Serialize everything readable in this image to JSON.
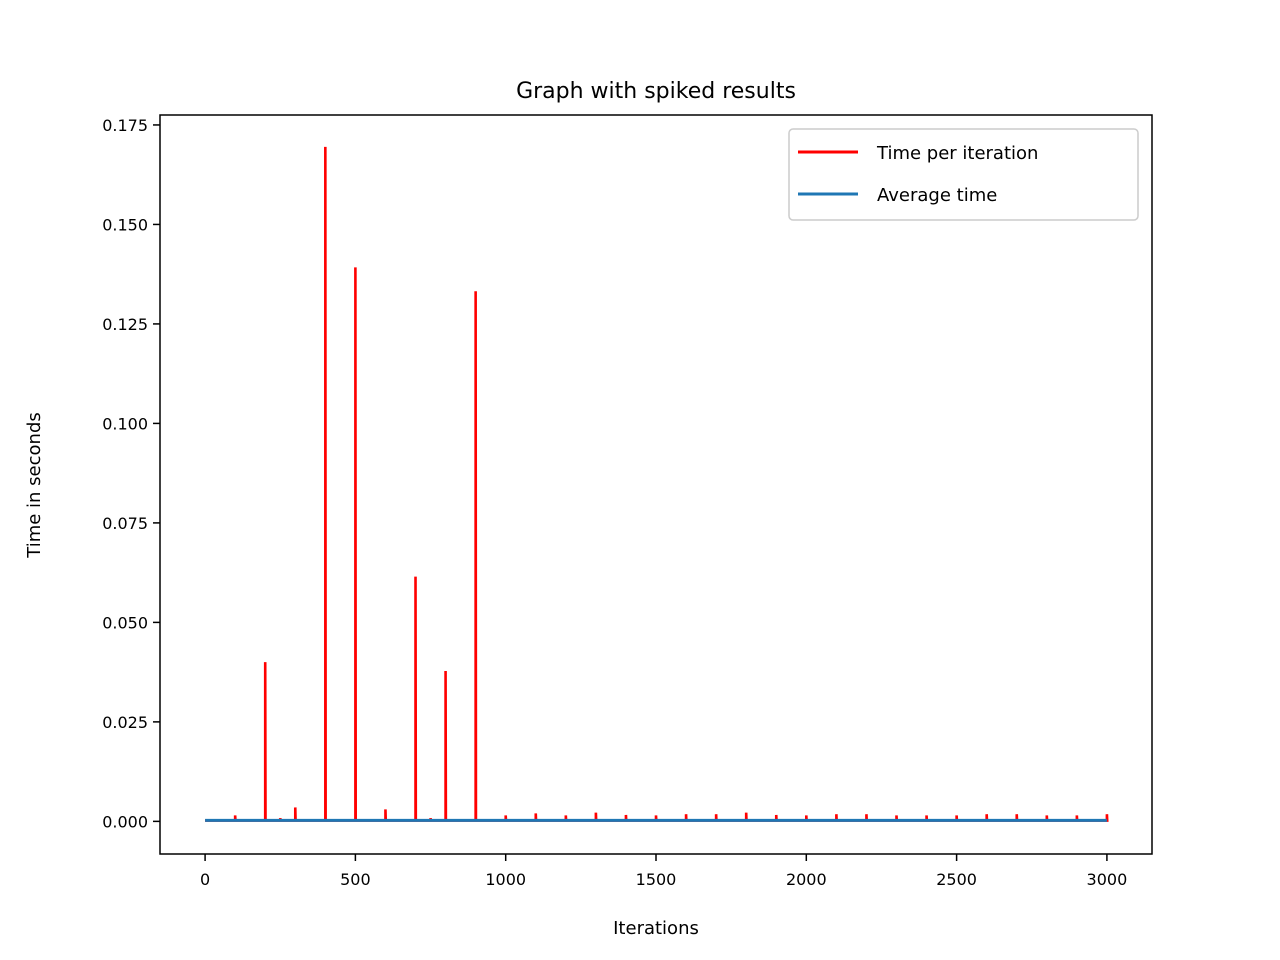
{
  "chart_data": {
    "type": "line",
    "title": "Graph with spiked results",
    "xlabel": "Iterations",
    "ylabel": "Time in seconds",
    "xlim": [
      -150,
      3150
    ],
    "ylim": [
      -0.0082,
      0.1775
    ],
    "xticks": [
      0,
      500,
      1000,
      1500,
      2000,
      2500,
      3000
    ],
    "xtick_labels": [
      "0",
      "500",
      "1000",
      "1500",
      "2000",
      "2500",
      "3000"
    ],
    "yticks": [
      0.0,
      0.025,
      0.05,
      0.075,
      0.1,
      0.125,
      0.15,
      0.175
    ],
    "ytick_labels": [
      "0.000",
      "0.025",
      "0.050",
      "0.075",
      "0.100",
      "0.125",
      "0.150",
      "0.175"
    ],
    "grid": false,
    "legend": "top-right",
    "series": [
      {
        "name": "Time per iteration",
        "color": "#ff0000",
        "baseline": 0.0002,
        "spikes": [
          {
            "x": 100,
            "y": 0.0015
          },
          {
            "x": 200,
            "y": 0.04
          },
          {
            "x": 250,
            "y": 0.0008
          },
          {
            "x": 300,
            "y": 0.0035
          },
          {
            "x": 400,
            "y": 0.1695
          },
          {
            "x": 500,
            "y": 0.1392
          },
          {
            "x": 600,
            "y": 0.003
          },
          {
            "x": 700,
            "y": 0.0615
          },
          {
            "x": 750,
            "y": 0.0008
          },
          {
            "x": 800,
            "y": 0.0378
          },
          {
            "x": 900,
            "y": 0.1332
          },
          {
            "x": 1000,
            "y": 0.0015
          },
          {
            "x": 1100,
            "y": 0.002
          },
          {
            "x": 1200,
            "y": 0.0015
          },
          {
            "x": 1300,
            "y": 0.0022
          },
          {
            "x": 1400,
            "y": 0.0016
          },
          {
            "x": 1500,
            "y": 0.0015
          },
          {
            "x": 1600,
            "y": 0.0018
          },
          {
            "x": 1700,
            "y": 0.0018
          },
          {
            "x": 1800,
            "y": 0.0022
          },
          {
            "x": 1900,
            "y": 0.0016
          },
          {
            "x": 2000,
            "y": 0.0015
          },
          {
            "x": 2100,
            "y": 0.0018
          },
          {
            "x": 2200,
            "y": 0.0018
          },
          {
            "x": 2300,
            "y": 0.0015
          },
          {
            "x": 2400,
            "y": 0.0015
          },
          {
            "x": 2500,
            "y": 0.0015
          },
          {
            "x": 2600,
            "y": 0.0018
          },
          {
            "x": 2700,
            "y": 0.0018
          },
          {
            "x": 2800,
            "y": 0.0015
          },
          {
            "x": 2900,
            "y": 0.0015
          },
          {
            "x": 3000,
            "y": 0.0018
          }
        ],
        "x_range": [
          0,
          3000
        ]
      },
      {
        "name": "Average time",
        "color": "#1f77b4",
        "x": [
          0,
          3000
        ],
        "y": [
          0.00025,
          0.00025
        ]
      }
    ]
  }
}
